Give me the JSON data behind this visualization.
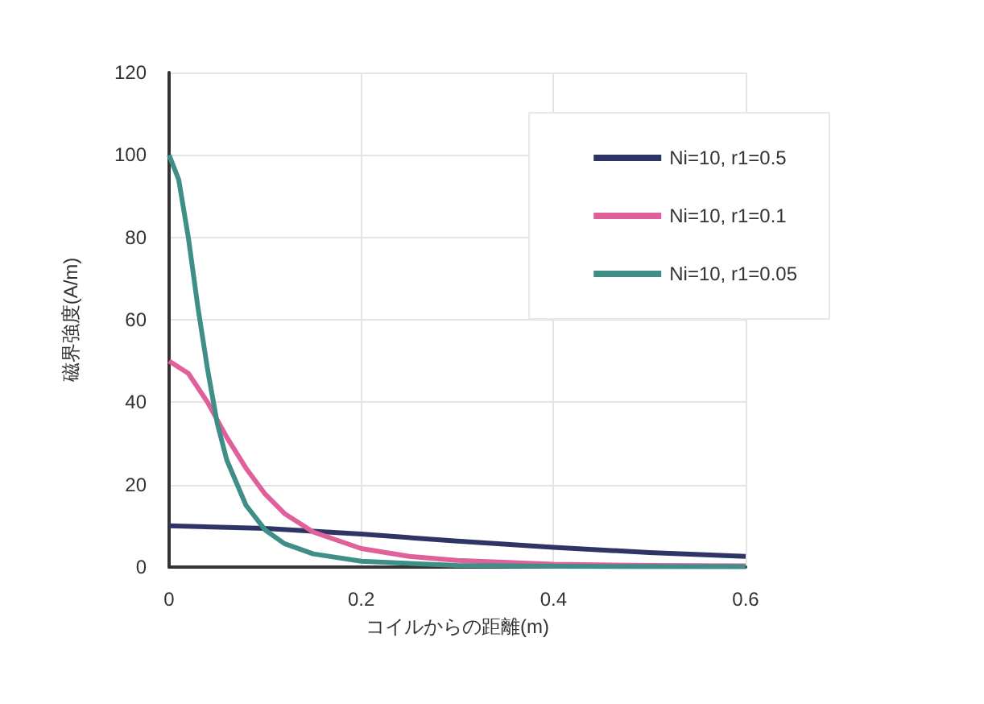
{
  "chart_data": {
    "type": "line",
    "xlabel": "コイルからの距離(m)",
    "ylabel": "磁界強度(A/m)",
    "xlim": [
      0,
      0.6
    ],
    "xticks": [
      0,
      0.2,
      0.4,
      0.6
    ],
    "ylim": [
      0,
      120
    ],
    "yticks": [
      0,
      20,
      40,
      60,
      80,
      100,
      120
    ],
    "grid": true,
    "legend": "top right",
    "marker": "none",
    "line_style": "solid",
    "series": [
      {
        "name": "Ni=10, r1=0.5",
        "color": "#2e3566",
        "x": [
          0,
          0.1,
          0.2,
          0.3,
          0.4,
          0.5,
          0.6
        ],
        "values": [
          10,
          9.4,
          8,
          6.3,
          4.8,
          3.5,
          2.6
        ]
      },
      {
        "name": "Ni=10, r1=0.1",
        "color": "#e0609a",
        "x": [
          0,
          0.02,
          0.04,
          0.06,
          0.08,
          0.1,
          0.12,
          0.15,
          0.2,
          0.25,
          0.3,
          0.4,
          0.5,
          0.6
        ],
        "values": [
          50,
          47,
          40,
          31.5,
          24,
          17.7,
          13,
          8.5,
          4.5,
          2.6,
          1.6,
          0.7,
          0.4,
          0.3
        ]
      },
      {
        "name": "Ni=10, r1=0.05",
        "color": "#3f8f88",
        "x": [
          0,
          0.01,
          0.02,
          0.03,
          0.04,
          0.05,
          0.06,
          0.08,
          0.1,
          0.12,
          0.15,
          0.2,
          0.3,
          0.4,
          0.6
        ],
        "values": [
          100,
          94,
          80,
          63,
          48,
          35,
          26,
          15,
          9,
          5.7,
          3.2,
          1.4,
          0.4,
          0.2,
          0.1
        ]
      }
    ]
  }
}
